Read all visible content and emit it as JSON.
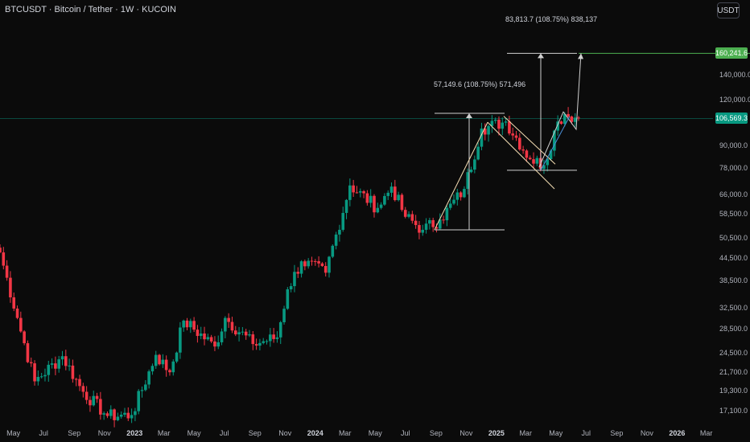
{
  "header": {
    "title": "BTCUSDT · Bitcoin / Tether · 1W · KUCOIN"
  },
  "currency_button": "USDT",
  "annotations": {
    "upper_measure": "83,813.7 (108.75%) 838,137",
    "lower_measure": "57,149.6 (108.75%) 571,496"
  },
  "price_tags": {
    "target": {
      "label": "160,241.6",
      "color": "#4caf50"
    },
    "current": {
      "label": "106,569.3",
      "color": "#089981"
    }
  },
  "chart_data": {
    "type": "candlestick",
    "symbol": "BTCUSDT",
    "interval": "1W",
    "scale": "log",
    "ylim": [
      15500,
      215000
    ],
    "y_ticks": [
      {
        "value": 140000,
        "label": "140,000.0"
      },
      {
        "value": 120000,
        "label": "120,000.0"
      },
      {
        "value": 90000,
        "label": "90,000.0"
      },
      {
        "value": 78000,
        "label": "78,000.0"
      },
      {
        "value": 66000,
        "label": "66,000.0"
      },
      {
        "value": 58500,
        "label": "58,500.0"
      },
      {
        "value": 50500,
        "label": "50,500.0"
      },
      {
        "value": 44500,
        "label": "44,500.0"
      },
      {
        "value": 38500,
        "label": "38,500.0"
      },
      {
        "value": 32500,
        "label": "32,500.0"
      },
      {
        "value": 28500,
        "label": "28,500.0"
      },
      {
        "value": 24500,
        "label": "24,500.0"
      },
      {
        "value": 21700,
        "label": "21,700.0"
      },
      {
        "value": 19300,
        "label": "19,300.0"
      },
      {
        "value": 17100,
        "label": "17,100.0"
      }
    ],
    "x_ticks": [
      {
        "date": "2022-05-01",
        "label": "May",
        "bold": false
      },
      {
        "date": "2022-07-01",
        "label": "Jul",
        "bold": false
      },
      {
        "date": "2022-09-01",
        "label": "Sep",
        "bold": false
      },
      {
        "date": "2022-11-01",
        "label": "Nov",
        "bold": false
      },
      {
        "date": "2023-01-01",
        "label": "2023",
        "bold": true
      },
      {
        "date": "2023-03-01",
        "label": "Mar",
        "bold": false
      },
      {
        "date": "2023-05-01",
        "label": "May",
        "bold": false
      },
      {
        "date": "2023-07-01",
        "label": "Jul",
        "bold": false
      },
      {
        "date": "2023-09-01",
        "label": "Sep",
        "bold": false
      },
      {
        "date": "2023-11-01",
        "label": "Nov",
        "bold": false
      },
      {
        "date": "2024-01-01",
        "label": "2024",
        "bold": true
      },
      {
        "date": "2024-03-01",
        "label": "Mar",
        "bold": false
      },
      {
        "date": "2024-05-01",
        "label": "May",
        "bold": false
      },
      {
        "date": "2024-07-01",
        "label": "Jul",
        "bold": false
      },
      {
        "date": "2024-09-01",
        "label": "Sep",
        "bold": false
      },
      {
        "date": "2024-11-01",
        "label": "Nov",
        "bold": false
      },
      {
        "date": "2025-01-01",
        "label": "2025",
        "bold": true
      },
      {
        "date": "2025-03-01",
        "label": "Mar",
        "bold": false
      },
      {
        "date": "2025-05-01",
        "label": "May",
        "bold": false
      },
      {
        "date": "2025-07-01",
        "label": "Jul",
        "bold": false
      },
      {
        "date": "2025-09-01",
        "label": "Sep",
        "bold": false
      },
      {
        "date": "2025-11-01",
        "label": "Nov",
        "bold": false
      },
      {
        "date": "2026-01-01",
        "label": "2026",
        "bold": true
      },
      {
        "date": "2026-03-01",
        "label": "Mar",
        "bold": false
      }
    ],
    "colors": {
      "up": "#089981",
      "down": "#f23645",
      "pattern": "#f5deb3",
      "measure": "#cfcfcf",
      "target_line": "#4caf50"
    },
    "key_closes": [
      {
        "date": "2022-04-04",
        "close": 46000
      },
      {
        "date": "2022-05-09",
        "close": 30500
      },
      {
        "date": "2022-06-13",
        "close": 20500
      },
      {
        "date": "2022-08-08",
        "close": 24000
      },
      {
        "date": "2022-09-19",
        "close": 19200
      },
      {
        "date": "2022-11-07",
        "close": 16500
      },
      {
        "date": "2022-12-26",
        "close": 16600
      },
      {
        "date": "2023-02-13",
        "close": 24200
      },
      {
        "date": "2023-03-13",
        "close": 21700
      },
      {
        "date": "2023-04-10",
        "close": 30000
      },
      {
        "date": "2023-06-12",
        "close": 25500
      },
      {
        "date": "2023-07-03",
        "close": 30500
      },
      {
        "date": "2023-08-28",
        "close": 25900
      },
      {
        "date": "2023-10-16",
        "close": 27000
      },
      {
        "date": "2023-11-06",
        "close": 36500
      },
      {
        "date": "2023-12-04",
        "close": 43500
      },
      {
        "date": "2024-01-22",
        "close": 40500
      },
      {
        "date": "2024-03-11",
        "close": 70000
      },
      {
        "date": "2024-05-06",
        "close": 60800
      },
      {
        "date": "2024-06-03",
        "close": 69500
      },
      {
        "date": "2024-07-01",
        "close": 57500
      },
      {
        "date": "2024-08-05",
        "close": 53000
      },
      {
        "date": "2024-09-09",
        "close": 56500
      },
      {
        "date": "2024-10-28",
        "close": 68500
      },
      {
        "date": "2024-12-02",
        "close": 100000
      },
      {
        "date": "2025-01-20",
        "close": 104500
      },
      {
        "date": "2025-03-10",
        "close": 82500
      },
      {
        "date": "2025-04-07",
        "close": 79500
      },
      {
        "date": "2025-05-05",
        "close": 104500
      },
      {
        "date": "2025-05-19",
        "close": 109500
      },
      {
        "date": "2025-06-16",
        "close": 106569.3
      }
    ],
    "current_price": 106569.3,
    "target_price": 160241.6,
    "measurements": [
      {
        "label": "57,149.6 (108.75%) 571,496",
        "from": 53000,
        "to": 110000
      },
      {
        "label": "83,813.7 (108.75%) 838,137",
        "from": 77000,
        "to": 160241.6
      }
    ]
  }
}
